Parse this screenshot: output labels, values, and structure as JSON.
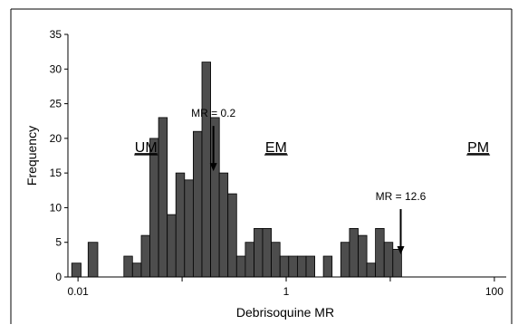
{
  "chart_data": {
    "type": "bar",
    "xlabel": "Debrisoquine MR",
    "ylabel": "Frequency",
    "x_scale": "log",
    "xlim": [
      0.008,
      130
    ],
    "ylim": [
      0,
      35
    ],
    "y_ticks": [
      0,
      5,
      10,
      15,
      20,
      25,
      30,
      35
    ],
    "x_ticks": [
      {
        "value": 0.01,
        "label": "0.01"
      },
      {
        "value": 1,
        "label": "1"
      },
      {
        "value": 100,
        "label": "100"
      }
    ],
    "grid": false,
    "bar_color": "#4d4d4d",
    "bins": [
      {
        "from": 0.0087,
        "to": 0.0107,
        "count": 2
      },
      {
        "from": 0.0125,
        "to": 0.0155,
        "count": 5
      },
      {
        "from": 0.0276,
        "to": 0.0334,
        "count": 3
      },
      {
        "from": 0.0334,
        "to": 0.0405,
        "count": 2
      },
      {
        "from": 0.0405,
        "to": 0.049,
        "count": 6
      },
      {
        "from": 0.049,
        "to": 0.0594,
        "count": 20
      },
      {
        "from": 0.0594,
        "to": 0.072,
        "count": 23
      },
      {
        "from": 0.072,
        "to": 0.0872,
        "count": 9
      },
      {
        "from": 0.0872,
        "to": 0.1056,
        "count": 15
      },
      {
        "from": 0.1056,
        "to": 0.128,
        "count": 14
      },
      {
        "from": 0.128,
        "to": 0.1551,
        "count": 21
      },
      {
        "from": 0.1551,
        "to": 0.1879,
        "count": 31
      },
      {
        "from": 0.1879,
        "to": 0.2276,
        "count": 23
      },
      {
        "from": 0.2276,
        "to": 0.2758,
        "count": 15
      },
      {
        "from": 0.2758,
        "to": 0.3341,
        "count": 12
      },
      {
        "from": 0.3341,
        "to": 0.4049,
        "count": 3
      },
      {
        "from": 0.4049,
        "to": 0.4905,
        "count": 5
      },
      {
        "from": 0.4905,
        "to": 0.5943,
        "count": 7
      },
      {
        "from": 0.5943,
        "to": 0.7201,
        "count": 7
      },
      {
        "from": 0.7201,
        "to": 0.8725,
        "count": 5
      },
      {
        "from": 0.8725,
        "to": 1.0571,
        "count": 3
      },
      {
        "from": 1.0571,
        "to": 1.2808,
        "count": 3
      },
      {
        "from": 1.2808,
        "to": 1.5518,
        "count": 3
      },
      {
        "from": 1.5518,
        "to": 1.8802,
        "count": 3
      },
      {
        "from": 2.2782,
        "to": 2.7603,
        "count": 3
      },
      {
        "from": 3.3444,
        "to": 4.0522,
        "count": 5
      },
      {
        "from": 4.0522,
        "to": 4.9097,
        "count": 7
      },
      {
        "from": 4.9097,
        "to": 5.9487,
        "count": 6
      },
      {
        "from": 5.9487,
        "to": 7.2076,
        "count": 2
      },
      {
        "from": 7.2076,
        "to": 8.7329,
        "count": 7
      },
      {
        "from": 8.7329,
        "to": 10.581,
        "count": 5
      },
      {
        "from": 10.581,
        "to": 12.82,
        "count": 4
      }
    ],
    "annotations": [
      {
        "text": "MR = 0.2",
        "points_to": {
          "x": 0.2,
          "y": 15
        }
      },
      {
        "text": "MR = 12.6",
        "points_to": {
          "x": 12.6,
          "y": 3
        }
      }
    ],
    "group_labels": [
      {
        "text": "UM",
        "x": 0.045,
        "y": 18
      },
      {
        "text": "EM",
        "x": 0.8,
        "y": 18
      },
      {
        "text": "PM",
        "x": 70,
        "y": 18
      }
    ]
  }
}
